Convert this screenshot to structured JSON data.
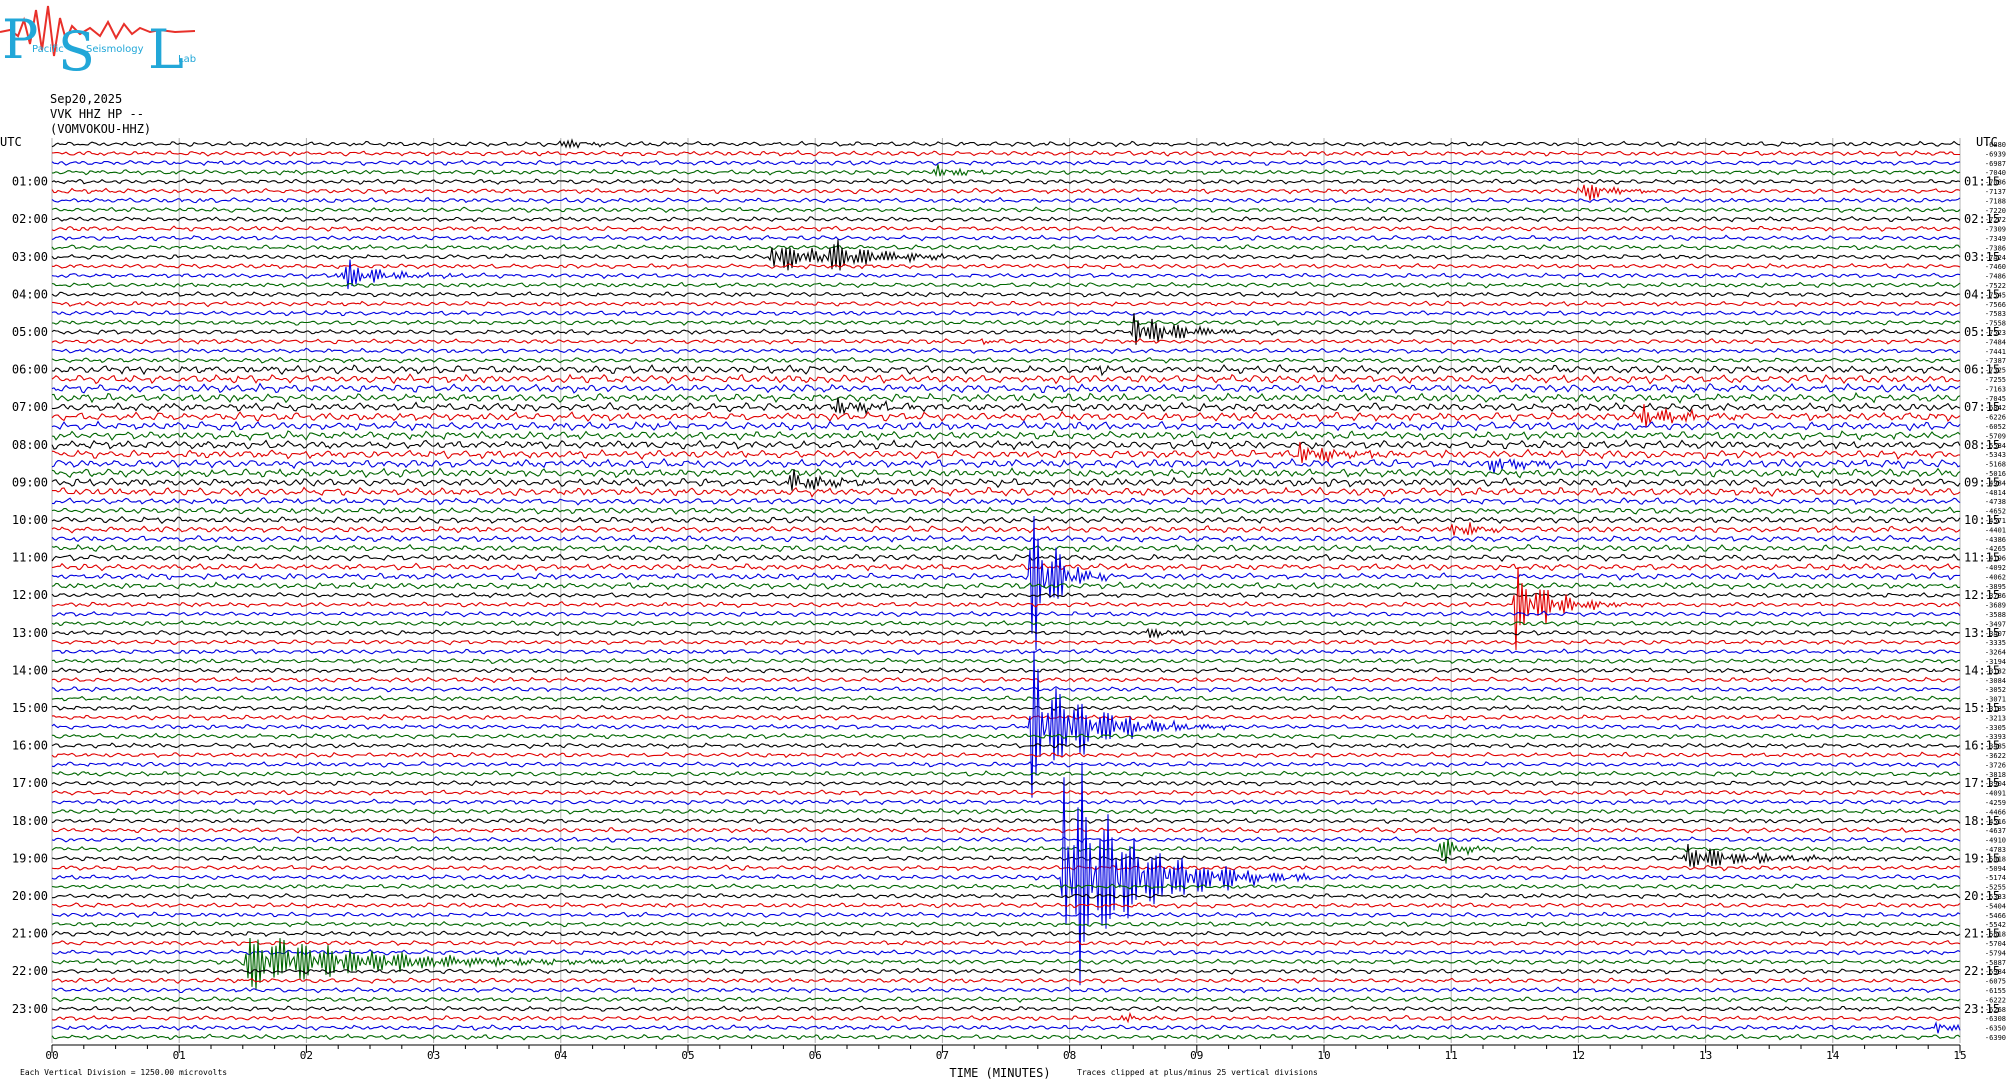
{
  "logo": {
    "letters": [
      "P",
      "S",
      "L"
    ],
    "words": [
      "Pacific",
      "Seismology",
      "Lab"
    ],
    "colors": {
      "letters": "#22a7d8",
      "seismo": "#e8302a"
    }
  },
  "header": {
    "date": "Sep20,2025",
    "station": "VVK HHZ HP --",
    "source": "(VOMVOKOU-HHZ)"
  },
  "chart_data": {
    "type": "helicorder",
    "left_axis_title": "UTC",
    "right_axis_title": "UTC",
    "hour_labels_left": [
      "01:00",
      "02:00",
      "03:00",
      "04:00",
      "05:00",
      "06:00",
      "07:00",
      "08:00",
      "09:00",
      "10:00",
      "11:00",
      "12:00",
      "13:00",
      "14:00",
      "15:00",
      "16:00",
      "17:00",
      "18:00",
      "19:00",
      "20:00",
      "21:00",
      "22:00",
      "23:00"
    ],
    "hour_labels_right": [
      "01:15",
      "02:15",
      "03:15",
      "04:15",
      "05:15",
      "06:15",
      "07:15",
      "08:15",
      "09:15",
      "10:15",
      "11:15",
      "12:15",
      "13:15",
      "14:15",
      "15:15",
      "16:15",
      "17:15",
      "18:15",
      "19:15",
      "20:15",
      "21:15",
      "22:15",
      "23:15"
    ],
    "x_tick_labels": [
      "00",
      "01",
      "02",
      "03",
      "04",
      "05",
      "06",
      "07",
      "08",
      "09",
      "10",
      "11",
      "12",
      "13",
      "14",
      "15"
    ],
    "xlabel": "TIME (MINUTES)",
    "xlim": [
      0,
      15
    ],
    "minutes_per_line": 15,
    "line_count": 96,
    "trace_colors": [
      "#000000",
      "#e00000",
      "#0000e0",
      "#006600"
    ],
    "right_offsets": [
      "-6880",
      "-6939",
      "-6987",
      "-7040",
      "-7086",
      "-7137",
      "-7188",
      "-7220",
      "-7272",
      "-7309",
      "-7349",
      "-7386",
      "-7424",
      "-7460",
      "-7486",
      "-7522",
      "-7545",
      "-7566",
      "-7583",
      "-7558",
      "-7523",
      "-7484",
      "-7441",
      "-7387",
      "-7325",
      "-7255",
      "-7163",
      "-7045",
      "-6842",
      "-6226",
      "-6052",
      "-5709",
      "-5534",
      "-5343",
      "-5168",
      "-5016",
      "-4984",
      "-4814",
      "-4738",
      "-4652",
      "-4571",
      "-4401",
      "-4386",
      "-4265",
      "-4196",
      "-4092",
      "-4062",
      "-3895",
      "-3786",
      "-3689",
      "-3588",
      "-3497",
      "-3407",
      "-3335",
      "-3264",
      "-3194",
      "-3132",
      "-3084",
      "-3052",
      "-3071",
      "-3135",
      "-3213",
      "-3305",
      "-3393",
      "-3485",
      "-3622",
      "-3726",
      "-3818",
      "-3904",
      "-4091",
      "-4259",
      "-4466",
      "-4516",
      "-4637",
      "-4910",
      "-4783",
      "-5018",
      "-5094",
      "-5174",
      "-5255",
      "-5333",
      "-5404",
      "-5466",
      "-5542",
      "-5618",
      "-5704",
      "-5794",
      "-5887",
      "-5984",
      "-6075",
      "-6155",
      "-6222",
      "-6268",
      "-6308",
      "-6350",
      "-6390"
    ],
    "footer_left": "Each Vertical Division = 1250.00 microvolts",
    "footer_right": "Traces clipped at plus/minus 25 vertical divisions",
    "events": [
      {
        "line": 0,
        "minute": 4.0,
        "amp": 6,
        "dur": 0.15
      },
      {
        "line": 3,
        "minute": 6.95,
        "amp": 8,
        "dur": 0.15
      },
      {
        "line": 5,
        "minute": 12.0,
        "amp": 12,
        "dur": 0.2
      },
      {
        "line": 12,
        "minute": 5.65,
        "amp": 16,
        "dur": 0.35
      },
      {
        "line": 12,
        "minute": 6.1,
        "amp": 14,
        "dur": 0.35
      },
      {
        "line": 14,
        "minute": 2.25,
        "amp": 18,
        "dur": 0.25
      },
      {
        "line": 20,
        "minute": 8.5,
        "amp": 18,
        "dur": 0.3
      },
      {
        "line": 21,
        "minute": 7.3,
        "amp": 3,
        "dur": 0.1
      },
      {
        "line": 24,
        "minute": 8.2,
        "amp": 4,
        "dur": 0.1
      },
      {
        "line": 28,
        "minute": 6.15,
        "amp": 8,
        "dur": 0.3
      },
      {
        "line": 29,
        "minute": 12.5,
        "amp": 10,
        "dur": 0.3
      },
      {
        "line": 33,
        "minute": 9.8,
        "amp": 9,
        "dur": 0.3
      },
      {
        "line": 34,
        "minute": 11.3,
        "amp": 7,
        "dur": 0.3
      },
      {
        "line": 36,
        "minute": 5.8,
        "amp": 12,
        "dur": 0.2
      },
      {
        "line": 41,
        "minute": 11.0,
        "amp": 8,
        "dur": 0.2
      },
      {
        "line": 46,
        "minute": 7.7,
        "amp": 90,
        "dur": 0.15
      },
      {
        "line": 49,
        "minute": 11.5,
        "amp": 40,
        "dur": 0.25
      },
      {
        "line": 52,
        "minute": 8.6,
        "amp": 6,
        "dur": 0.15
      },
      {
        "line": 62,
        "minute": 7.7,
        "amp": 60,
        "dur": 0.4
      },
      {
        "line": 75,
        "minute": 10.9,
        "amp": 14,
        "dur": 0.15
      },
      {
        "line": 76,
        "minute": 12.85,
        "amp": 12,
        "dur": 0.5
      },
      {
        "line": 78,
        "minute": 7.95,
        "amp": 110,
        "dur": 0.5
      },
      {
        "line": 87,
        "minute": 1.5,
        "amp": 28,
        "dur": 0.9
      },
      {
        "line": 94,
        "minute": 14.8,
        "amp": 6,
        "dur": 0.2
      },
      {
        "line": 93,
        "minute": 8.4,
        "amp": 5,
        "dur": 0.1
      }
    ]
  }
}
